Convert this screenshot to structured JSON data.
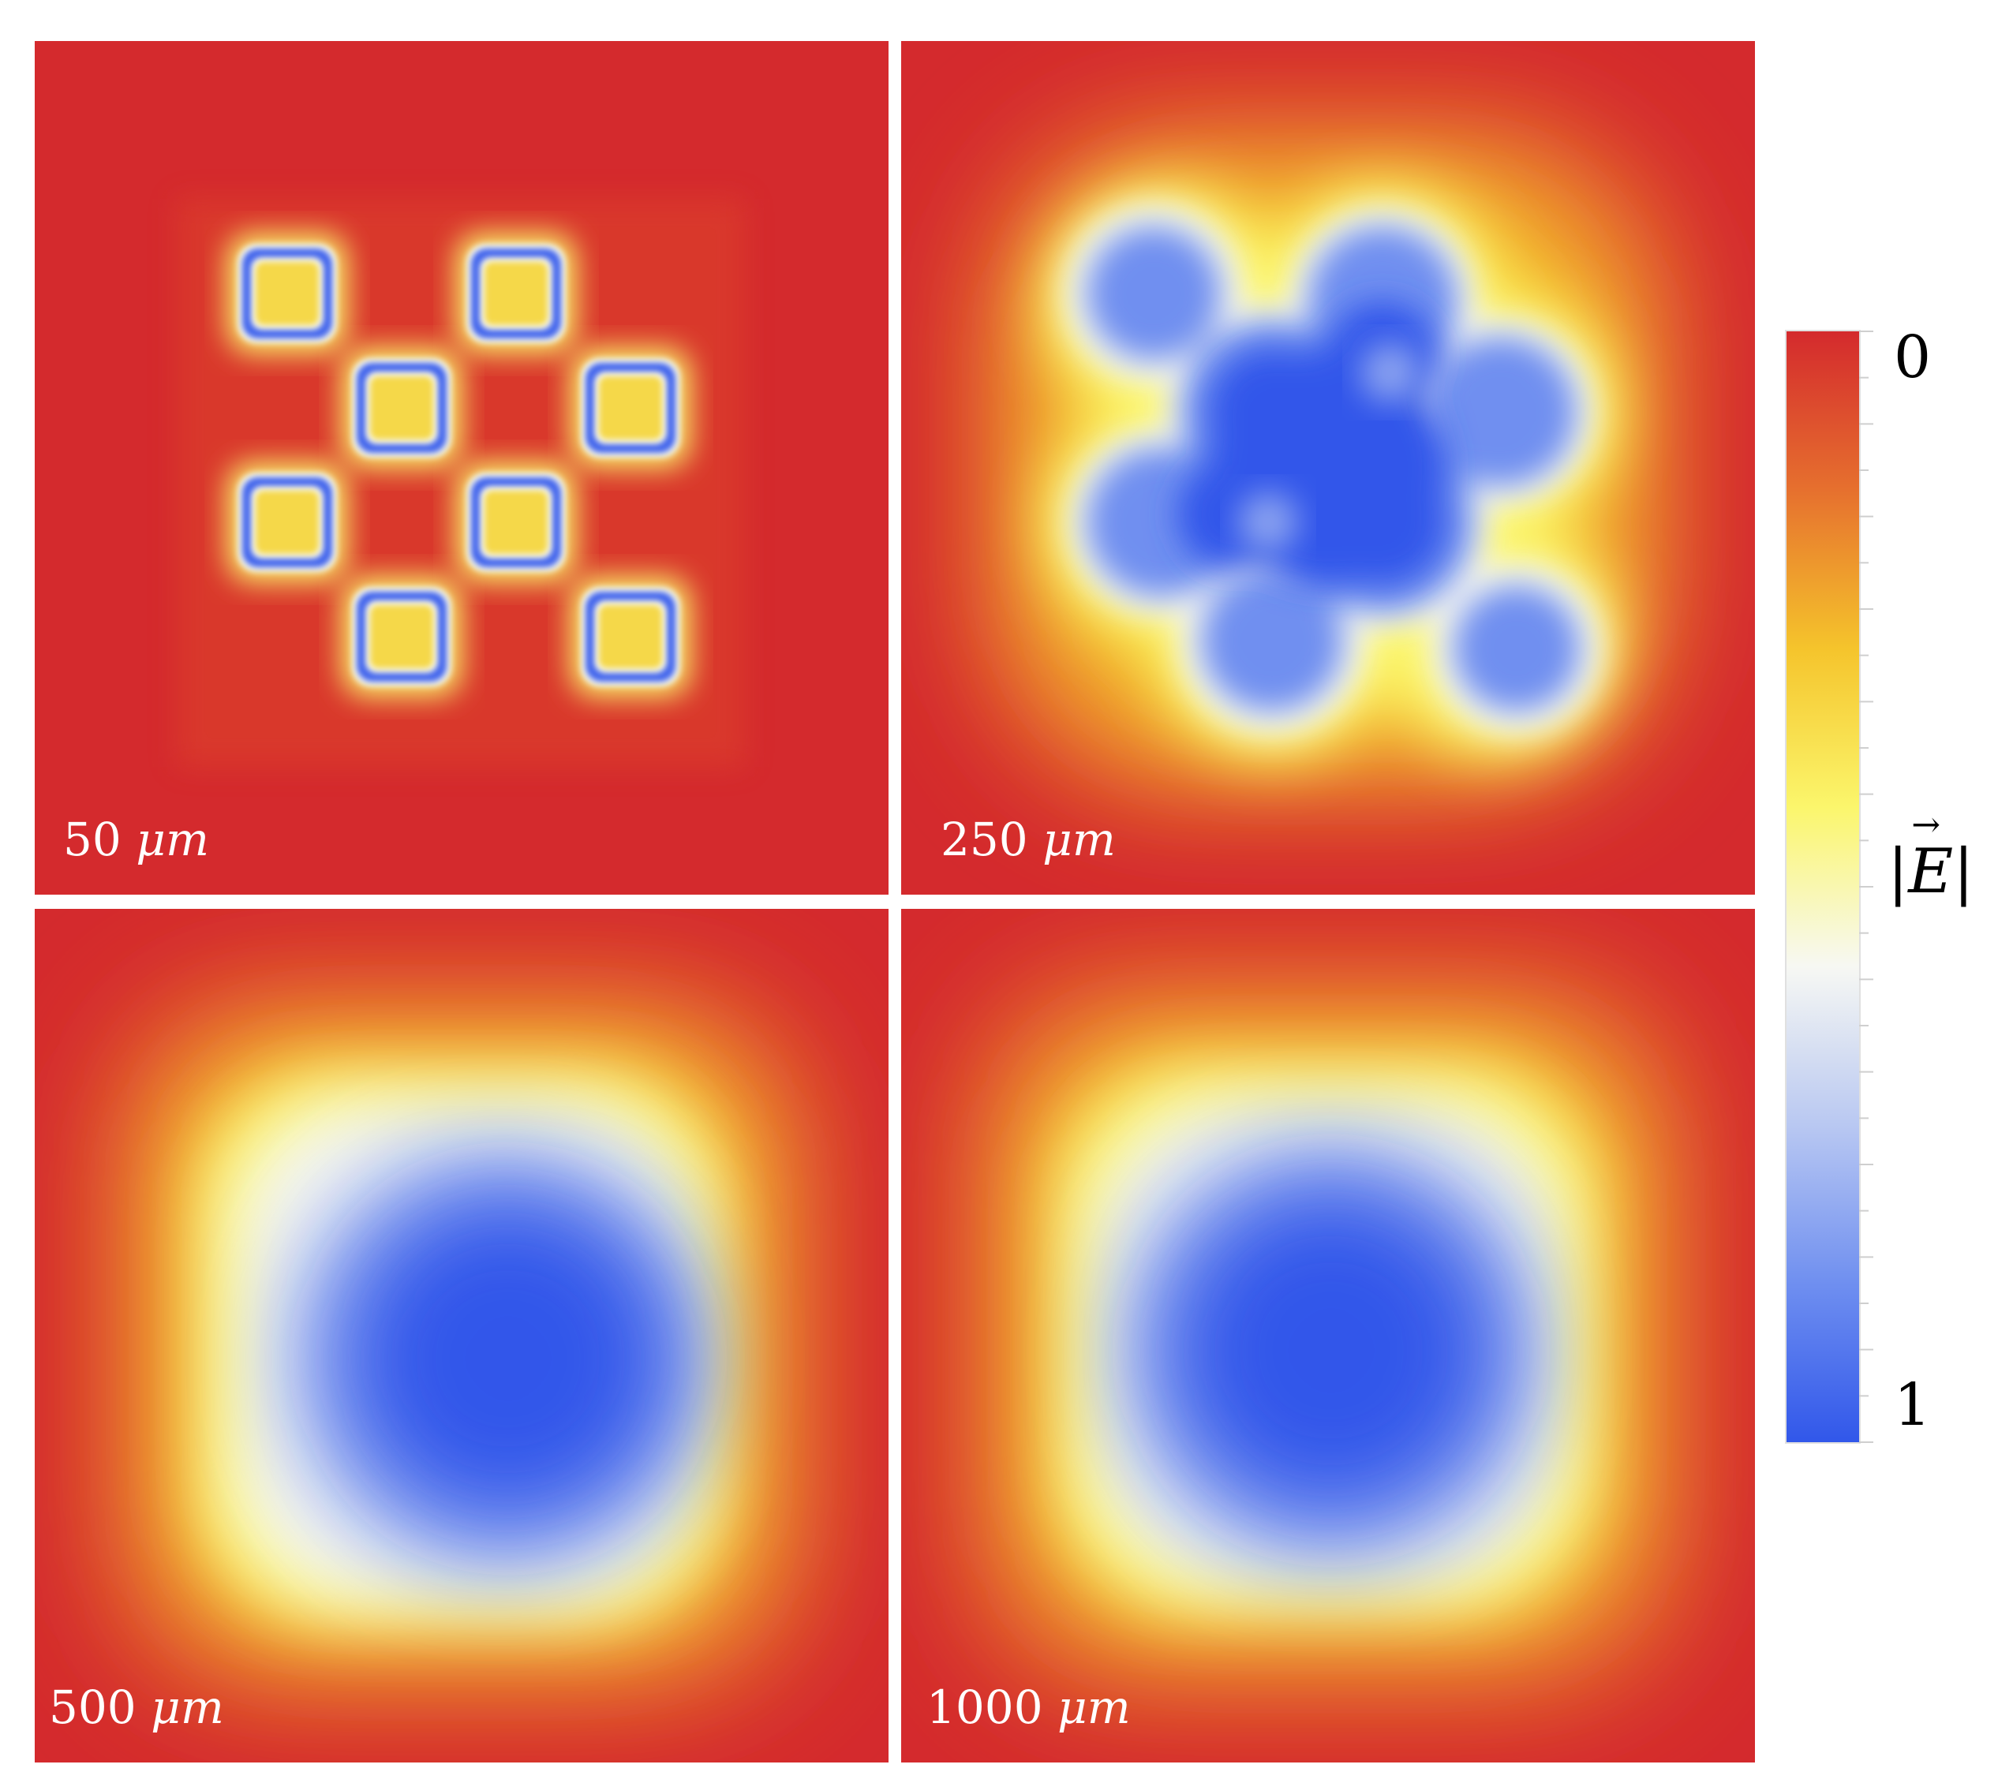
{
  "panels": [
    {
      "id": "panel-50",
      "value": "50",
      "unit": "μm"
    },
    {
      "id": "panel-250",
      "value": "250",
      "unit": "μm"
    },
    {
      "id": "panel-500",
      "value": "500",
      "unit": "μm"
    },
    {
      "id": "panel-1000",
      "value": "1000",
      "unit": "μm"
    }
  ],
  "colorbar": {
    "top_label": "0",
    "bottom_label": "1",
    "quantity_bar_left": "|",
    "quantity_symbol": "E",
    "quantity_arrow": "→",
    "quantity_bar_right": "|",
    "colors": [
      "#d42a2d",
      "#e6702e",
      "#f5c42c",
      "#fbf66c",
      "#f7f8f3",
      "#b9c8f2",
      "#6f8ff0",
      "#3157ea"
    ]
  }
}
